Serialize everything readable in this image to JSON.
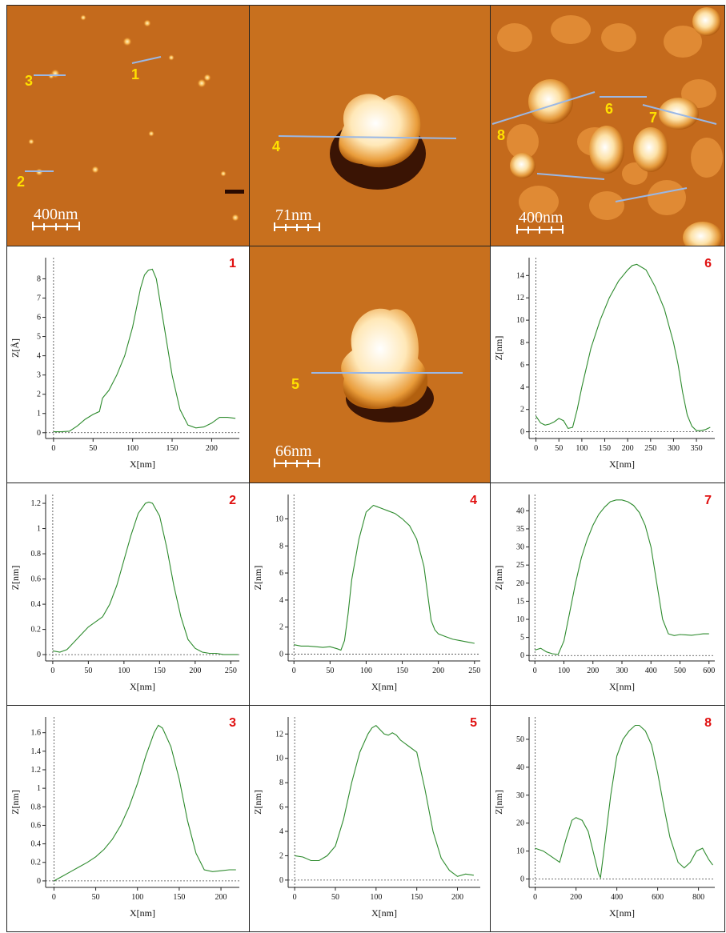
{
  "colors": {
    "profile_line": "#2e8b2e",
    "scan_line": "#9ab8e6",
    "label": "#ffe000",
    "panel_number": "#e01010"
  },
  "afm_images": [
    {
      "id": "img-a",
      "scale_bar": "400nm",
      "line_labels": [
        "1",
        "2",
        "3"
      ]
    },
    {
      "id": "img-b",
      "scale_bar": "71nm",
      "line_labels": [
        "4"
      ]
    },
    {
      "id": "img-c",
      "scale_bar": "400nm",
      "line_labels": [
        "6",
        "7",
        "8"
      ]
    },
    {
      "id": "img-d",
      "scale_bar": "66nm",
      "line_labels": [
        "5"
      ]
    }
  ],
  "chart_data": [
    {
      "type": "line",
      "panel": "1",
      "xlabel": "X[nm]",
      "ylabel": "Z[Å]",
      "xlim": [
        -10,
        235
      ],
      "ylim": [
        -0.3,
        9.1
      ],
      "xticks": [
        0,
        50,
        100,
        150,
        200
      ],
      "yticks": [
        0,
        1,
        2,
        3,
        4,
        5,
        6,
        7,
        8
      ],
      "x": [
        0,
        10,
        20,
        30,
        40,
        50,
        58,
        62,
        70,
        80,
        90,
        100,
        110,
        115,
        120,
        125,
        130,
        140,
        150,
        160,
        170,
        180,
        190,
        200,
        210,
        220,
        230
      ],
      "y": [
        0.05,
        0.05,
        0.08,
        0.35,
        0.7,
        0.95,
        1.1,
        1.8,
        2.2,
        3.0,
        4.0,
        5.5,
        7.5,
        8.2,
        8.45,
        8.5,
        8.0,
        5.5,
        3.0,
        1.2,
        0.4,
        0.25,
        0.3,
        0.5,
        0.8,
        0.8,
        0.75
      ]
    },
    {
      "type": "line",
      "panel": "6",
      "xlabel": "X[nm]",
      "ylabel": "Z[nm]",
      "xlim": [
        -15,
        390
      ],
      "ylim": [
        -0.6,
        15.6
      ],
      "xticks": [
        0,
        50,
        100,
        150,
        200,
        250,
        300,
        350
      ],
      "yticks": [
        0,
        2,
        4,
        6,
        8,
        10,
        12,
        14
      ],
      "x": [
        0,
        10,
        20,
        30,
        40,
        50,
        60,
        70,
        80,
        90,
        100,
        120,
        140,
        160,
        180,
        200,
        210,
        220,
        240,
        260,
        280,
        300,
        310,
        320,
        330,
        340,
        350,
        360,
        370,
        380
      ],
      "y": [
        1.4,
        0.8,
        0.6,
        0.7,
        0.9,
        1.2,
        1.0,
        0.3,
        0.4,
        2.0,
        4.0,
        7.5,
        10.0,
        12.0,
        13.5,
        14.5,
        14.9,
        15.0,
        14.5,
        13.0,
        11.0,
        8.0,
        6.0,
        3.5,
        1.5,
        0.5,
        0.1,
        0.1,
        0.2,
        0.4
      ]
    },
    {
      "type": "line",
      "panel": "2",
      "xlabel": "X[nm]",
      "ylabel": "Z[nm]",
      "xlim": [
        -10,
        262
      ],
      "ylim": [
        -0.05,
        1.27
      ],
      "xticks": [
        0,
        50,
        100,
        150,
        200,
        250
      ],
      "yticks": [
        0,
        0.2,
        0.4,
        0.6,
        0.8,
        1,
        1.2
      ],
      "x": [
        0,
        10,
        20,
        30,
        40,
        50,
        60,
        70,
        80,
        90,
        100,
        110,
        120,
        130,
        135,
        140,
        150,
        160,
        170,
        180,
        190,
        200,
        210,
        220,
        230,
        240,
        250,
        260
      ],
      "y": [
        0.03,
        0.02,
        0.04,
        0.1,
        0.16,
        0.22,
        0.26,
        0.3,
        0.4,
        0.55,
        0.75,
        0.95,
        1.12,
        1.2,
        1.21,
        1.2,
        1.1,
        0.85,
        0.55,
        0.3,
        0.12,
        0.05,
        0.02,
        0.01,
        0.01,
        0.0,
        0.0,
        0.0
      ]
    },
    {
      "type": "line",
      "panel": "4",
      "xlabel": "X[nm]",
      "ylabel": "Z[nm]",
      "xlim": [
        -8,
        258
      ],
      "ylim": [
        -0.5,
        11.8
      ],
      "xticks": [
        0,
        50,
        100,
        150,
        200,
        250
      ],
      "yticks": [
        0,
        2,
        4,
        6,
        8,
        10
      ],
      "x": [
        0,
        10,
        20,
        30,
        40,
        50,
        60,
        65,
        70,
        75,
        80,
        90,
        100,
        110,
        115,
        120,
        130,
        140,
        150,
        160,
        170,
        180,
        185,
        190,
        195,
        200,
        210,
        220,
        230,
        240,
        250
      ],
      "y": [
        0.7,
        0.6,
        0.6,
        0.55,
        0.5,
        0.55,
        0.4,
        0.3,
        1.0,
        3.0,
        5.5,
        8.5,
        10.5,
        11.0,
        10.9,
        10.8,
        10.6,
        10.4,
        10.0,
        9.5,
        8.5,
        6.5,
        4.5,
        2.5,
        1.8,
        1.5,
        1.3,
        1.1,
        1.0,
        0.9,
        0.8
      ]
    },
    {
      "type": "line",
      "panel": "7",
      "xlabel": "X[nm]",
      "ylabel": "Z[nm]",
      "xlim": [
        -20,
        620
      ],
      "ylim": [
        -1.5,
        44.5
      ],
      "xticks": [
        0,
        100,
        200,
        300,
        400,
        500,
        600
      ],
      "yticks": [
        0,
        5,
        10,
        15,
        20,
        25,
        30,
        35,
        40
      ],
      "x": [
        0,
        20,
        40,
        60,
        80,
        100,
        120,
        140,
        160,
        180,
        200,
        220,
        240,
        260,
        280,
        300,
        320,
        340,
        360,
        380,
        400,
        420,
        440,
        460,
        480,
        500,
        520,
        540,
        560,
        580,
        600
      ],
      "y": [
        1.5,
        2.0,
        1.0,
        0.5,
        0.3,
        4.0,
        12.0,
        20.0,
        27.0,
        32.0,
        36.0,
        39.0,
        41.0,
        42.5,
        43.0,
        43.0,
        42.5,
        41.5,
        39.5,
        36.0,
        30.0,
        20.0,
        10.0,
        6.0,
        5.5,
        5.8,
        5.7,
        5.6,
        5.8,
        6.0,
        6.0
      ]
    },
    {
      "type": "line",
      "panel": "3",
      "xlabel": "X[nm]",
      "ylabel": "Z[nm]",
      "xlim": [
        -10,
        222
      ],
      "ylim": [
        -0.07,
        1.77
      ],
      "xticks": [
        0,
        50,
        100,
        150,
        200
      ],
      "yticks": [
        0,
        0.2,
        0.4,
        0.6,
        0.8,
        1,
        1.2,
        1.4,
        1.6
      ],
      "x": [
        0,
        10,
        20,
        30,
        40,
        50,
        60,
        70,
        80,
        90,
        100,
        110,
        120,
        125,
        130,
        140,
        150,
        160,
        170,
        180,
        190,
        200,
        210,
        218
      ],
      "y": [
        0.0,
        0.05,
        0.1,
        0.15,
        0.2,
        0.26,
        0.34,
        0.45,
        0.6,
        0.8,
        1.05,
        1.35,
        1.6,
        1.68,
        1.65,
        1.45,
        1.1,
        0.65,
        0.3,
        0.12,
        0.1,
        0.11,
        0.12,
        0.12
      ]
    },
    {
      "type": "line",
      "panel": "5",
      "xlabel": "X[nm]",
      "ylabel": "Z[nm]",
      "xlim": [
        -8,
        228
      ],
      "ylim": [
        -0.6,
        13.4
      ],
      "xticks": [
        0,
        50,
        100,
        150,
        200
      ],
      "yticks": [
        0,
        2,
        4,
        6,
        8,
        10,
        12
      ],
      "x": [
        0,
        10,
        20,
        30,
        40,
        50,
        60,
        70,
        80,
        90,
        95,
        100,
        110,
        115,
        120,
        125,
        130,
        140,
        150,
        160,
        170,
        180,
        190,
        200,
        210,
        220
      ],
      "y": [
        2.0,
        1.9,
        1.6,
        1.6,
        2.0,
        2.8,
        5.0,
        8.0,
        10.5,
        12.0,
        12.5,
        12.7,
        12.0,
        11.9,
        12.1,
        11.9,
        11.5,
        11.0,
        10.5,
        7.5,
        4.0,
        1.8,
        0.8,
        0.3,
        0.5,
        0.4
      ]
    },
    {
      "type": "line",
      "panel": "8",
      "xlabel": "X[nm]",
      "ylabel": "Z[nm]",
      "xlim": [
        -30,
        880
      ],
      "ylim": [
        -3,
        58
      ],
      "xticks": [
        0,
        200,
        400,
        600,
        800
      ],
      "yticks": [
        0,
        10,
        20,
        30,
        40,
        50
      ],
      "x": [
        0,
        40,
        80,
        100,
        120,
        150,
        180,
        200,
        230,
        260,
        290,
        310,
        320,
        340,
        370,
        400,
        430,
        460,
        490,
        510,
        540,
        570,
        600,
        630,
        660,
        700,
        730,
        760,
        790,
        820,
        850,
        870
      ],
      "y": [
        11,
        10,
        8,
        7,
        6,
        14,
        21,
        22,
        21,
        17,
        8,
        2,
        0.5,
        12,
        30,
        44,
        50,
        53,
        55,
        55,
        53,
        48,
        38,
        26,
        15,
        6,
        4,
        6,
        10,
        11,
        7,
        5
      ]
    }
  ]
}
